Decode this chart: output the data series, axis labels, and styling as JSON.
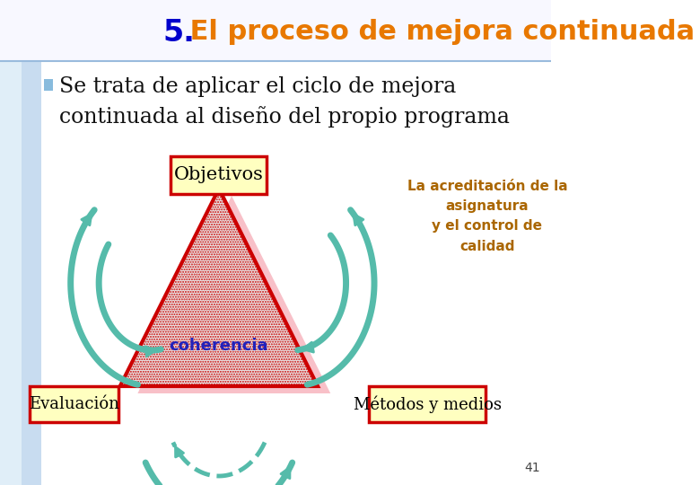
{
  "title_part1": "5.",
  "title_part2": " El proceso de mejora continuada",
  "title_color1": "#0000CC",
  "title_color2": "#E87800",
  "title_fontsize": 20,
  "bg_color": "#FFFFFF",
  "left_bar_color1": "#C8DCF0",
  "left_bar_color2": "#E0EEF8",
  "header_line_color": "#99BBDD",
  "bullet_text_line1": "Se trata de aplicar el ciclo de mejora",
  "bullet_text_line2": "continuada al diseño del propio programa",
  "bullet_color": "#88BBDD",
  "bullet_text_color": "#111111",
  "label_objetivos": "Objetivos",
  "label_evaluacion": "Evaluación",
  "label_metodos": "Métodos y medios",
  "label_coherencia": "coherencia",
  "label_coherencia_color": "#2222BB",
  "box_border_color": "#CC0000",
  "box_fill_color": "#FFFFC0",
  "triangle_border_color": "#CC0000",
  "triangle_fill_color": "#E8E8E8",
  "triangle_pink_color": "#F8C0C8",
  "arrow_color_outer": "#55BBAA",
  "arrow_color_inner": "#44AAAA",
  "side_note_text": "La acreditación de la\nasignatura\ny el control de\ncalidad",
  "side_note_color": "#AA6600",
  "page_number": "41",
  "label_fontsize": 14,
  "coherencia_fontsize": 13,
  "sidenote_fontsize": 10,
  "bullet_fontsize": 17
}
